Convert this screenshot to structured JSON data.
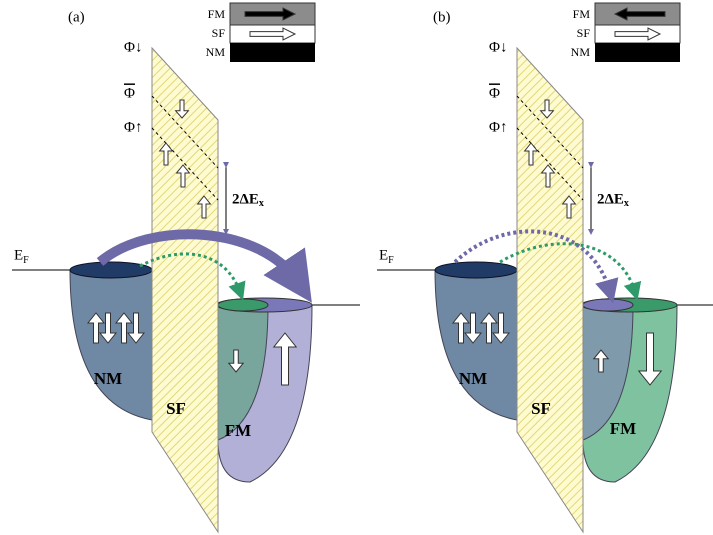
{
  "panels": [
    {
      "label": "(a)",
      "legend": {
        "top": "FM",
        "middle": "SF",
        "bottom": "NM"
      },
      "barrier_levels": [
        "Φ↓",
        "Φ",
        "Φ↑"
      ],
      "splitting": {
        "label": "2ΔE",
        "subscript": "x"
      },
      "fermi": {
        "label": "E",
        "subscript": "F"
      },
      "regions": {
        "left": "NM",
        "barrier": "SF",
        "right": "FM"
      }
    },
    {
      "label": "(b)",
      "legend": {
        "top": "FM",
        "middle": "SF",
        "bottom": "NM"
      },
      "barrier_levels": [
        "Φ↓",
        "Φ",
        "Φ↑"
      ],
      "splitting": {
        "label": "2ΔE",
        "subscript": "x"
      },
      "fermi": {
        "label": "E",
        "subscript": "F"
      },
      "regions": {
        "left": "NM",
        "barrier": "SF",
        "right": "FM"
      }
    }
  ]
}
